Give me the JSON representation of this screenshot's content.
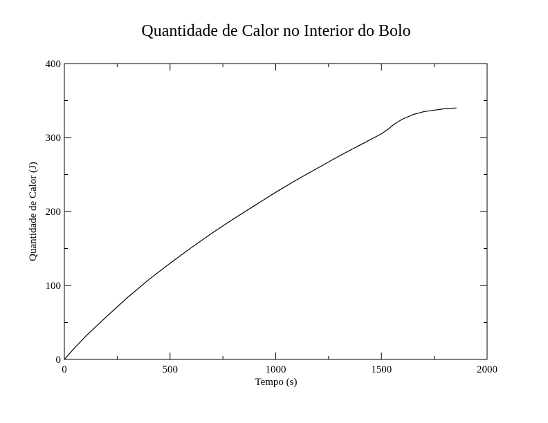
{
  "chart_data": {
    "type": "line",
    "title": "Quantidade de Calor no Interior do Bolo",
    "xlabel": "Tempo (s)",
    "ylabel": "Quantidade de Calor (J)",
    "xlim": [
      0,
      2000
    ],
    "ylim": [
      0,
      400
    ],
    "x_major_ticks": [
      0,
      500,
      1000,
      1500,
      2000
    ],
    "x_tick_labels": [
      "0",
      "500",
      "1000",
      "1500",
      "2000"
    ],
    "x_minor_ticks": [
      250,
      750,
      1250,
      1750
    ],
    "y_major_ticks": [
      0,
      100,
      200,
      300,
      400
    ],
    "y_tick_labels": [
      "0",
      "100",
      "200",
      "300",
      "400"
    ],
    "y_minor_ticks": [
      50,
      150,
      250,
      350
    ],
    "grid": false,
    "series": [
      {
        "color": "#000000",
        "x": [
          0,
          50,
          100,
          200,
          300,
          400,
          500,
          600,
          700,
          800,
          900,
          1000,
          1100,
          1200,
          1300,
          1400,
          1500,
          1530,
          1560,
          1600,
          1650,
          1700,
          1750,
          1800,
          1855
        ],
        "y": [
          0,
          16,
          31,
          58,
          84,
          108,
          130,
          151,
          171,
          190,
          208,
          226,
          243,
          259,
          275,
          290,
          305,
          311,
          318,
          325,
          331,
          335,
          337,
          339,
          340
        ]
      }
    ]
  }
}
